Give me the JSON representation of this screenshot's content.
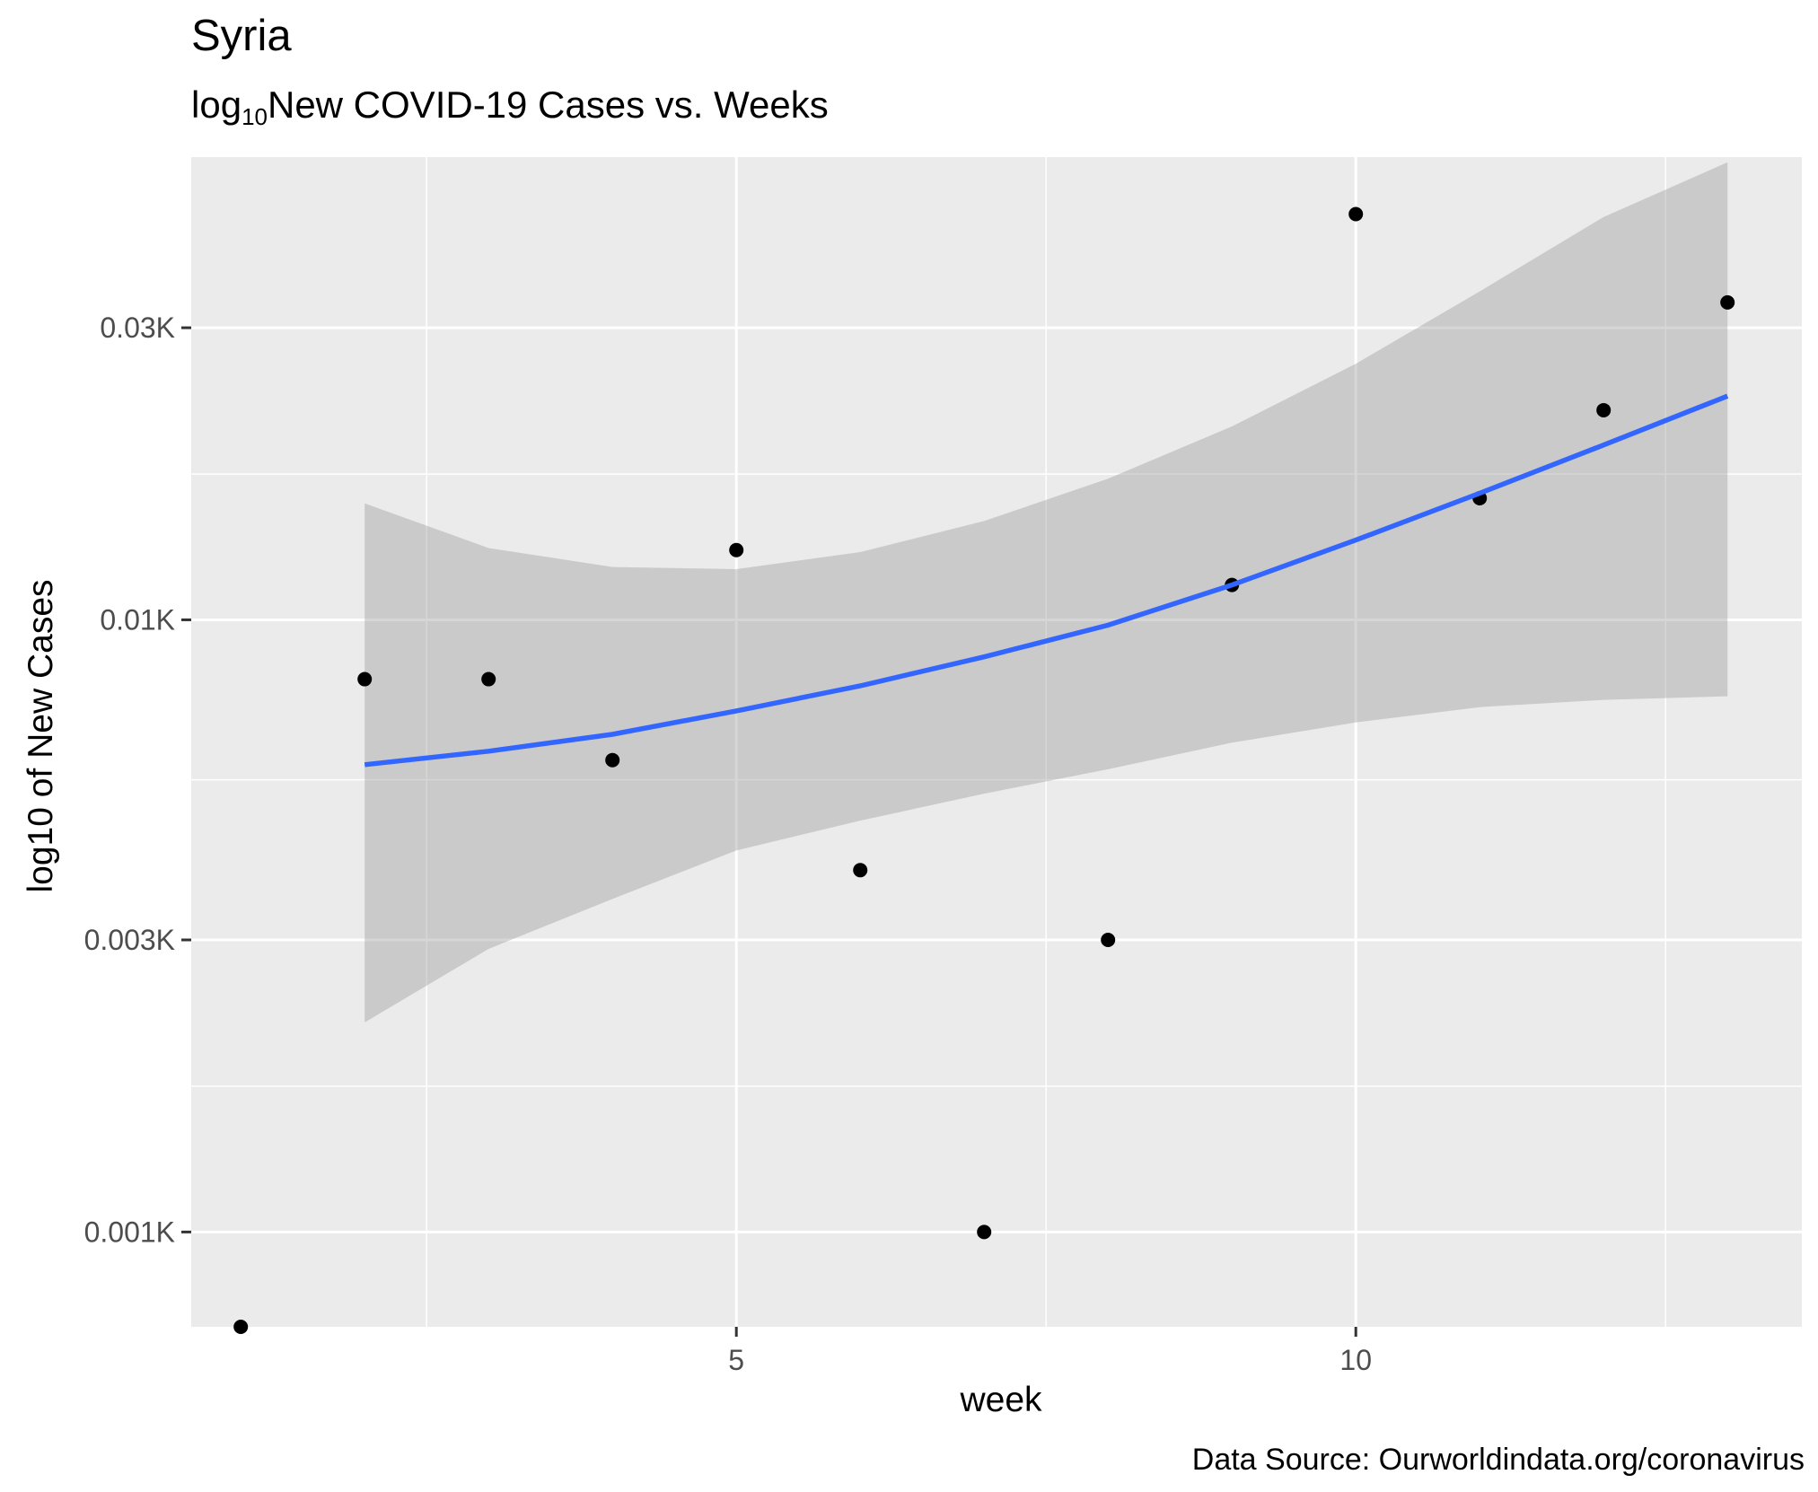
{
  "chart_data": {
    "type": "scatter",
    "title": "Syria",
    "subtitle": {
      "prefix": "log",
      "sub": "10",
      "rest": "New COVID-19 Cases vs. Weeks"
    },
    "xlabel": "week",
    "ylabel": "log10 of New Cases",
    "caption": "Data Source: Ourworldindata.org/coronavirus",
    "xlim": [
      0.6,
      13.6
    ],
    "ylim": [
      0.0007,
      0.057
    ],
    "y_scale": "log10",
    "grid": true,
    "x_ticks": [
      {
        "value": 5,
        "label": "5"
      },
      {
        "value": 10,
        "label": "10"
      }
    ],
    "x_minor_ticks": [
      2.5,
      7.5,
      12.5
    ],
    "y_ticks": [
      {
        "value": 0.001,
        "label": "0.001K"
      },
      {
        "value": 0.003,
        "label": "0.003K"
      },
      {
        "value": 0.01,
        "label": "0.01K"
      },
      {
        "value": 0.03,
        "label": "0.03K"
      }
    ],
    "y_minor_ticks": [
      0.00173,
      0.00548,
      0.0173
    ],
    "series": [
      {
        "type": "points",
        "color": "#000000",
        "x": [
          1,
          2,
          3,
          4,
          5,
          6,
          7,
          8,
          9,
          10,
          11,
          12,
          13
        ],
        "y": [
          0.0007,
          0.008,
          0.008,
          0.0059,
          0.013,
          0.0039,
          0.001,
          0.003,
          0.0114,
          0.046,
          0.0158,
          0.022,
          0.033
        ]
      },
      {
        "type": "smooth",
        "color": "#3366ff",
        "x": [
          2,
          3,
          4,
          5,
          6,
          7,
          8,
          9,
          10,
          11,
          12,
          13
        ],
        "y": [
          0.0058,
          0.0061,
          0.0065,
          0.0071,
          0.0078,
          0.0087,
          0.0098,
          0.0114,
          0.0135,
          0.0161,
          0.0193,
          0.0232
        ],
        "ci_low": [
          0.0022,
          0.0029,
          0.0035,
          0.0042,
          0.0047,
          0.0052,
          0.0057,
          0.0063,
          0.0068,
          0.0072,
          0.0074,
          0.0075
        ],
        "ci_high": [
          0.0155,
          0.0131,
          0.0122,
          0.0121,
          0.0129,
          0.0145,
          0.017,
          0.0207,
          0.0262,
          0.0344,
          0.0455,
          0.0559
        ],
        "band_color": "#999999"
      }
    ]
  }
}
